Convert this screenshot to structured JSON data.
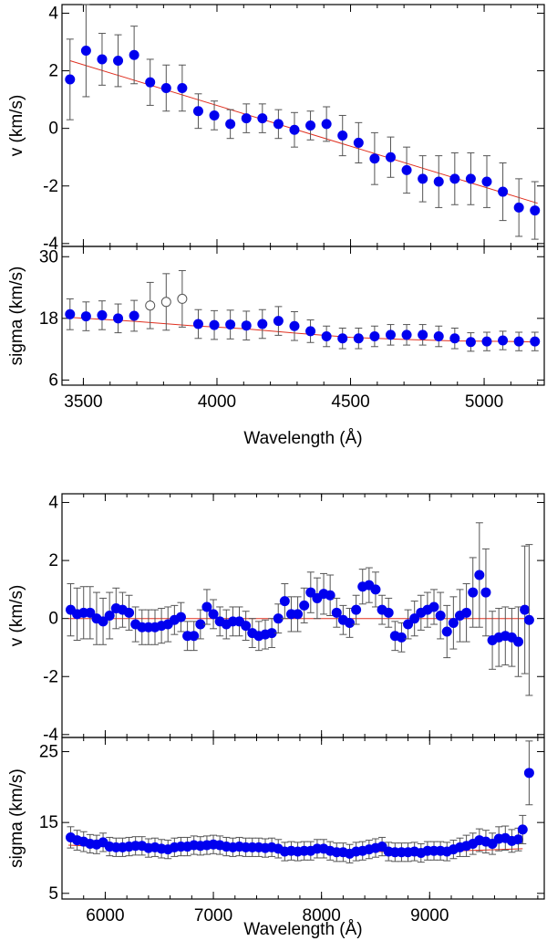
{
  "chart_data": [
    {
      "id": "blue-arm",
      "type": "scatter",
      "xlabel": "Wavelength (Å)",
      "xlim": [
        3420,
        5225
      ],
      "x_ticks": [
        "3500",
        "4000",
        "4500",
        "5000"
      ],
      "marker_color": "#0000ee",
      "fit_color": "#e03020",
      "errorbar_color": "#555555",
      "panels": [
        {
          "id": "v",
          "ylabel": "v (km/s)",
          "ylim": [
            -4.1,
            4.3
          ],
          "y_ticks": [
            "-4",
            "-2",
            "0",
            "2",
            "4"
          ],
          "fit_line": {
            "x": [
              3450,
              5200
            ],
            "y": [
              2.35,
              -2.6
            ]
          },
          "x": [
            3450,
            3510,
            3570,
            3630,
            3690,
            3750,
            3810,
            3870,
            3930,
            3990,
            4050,
            4110,
            4170,
            4230,
            4290,
            4350,
            4410,
            4470,
            4530,
            4590,
            4650,
            4710,
            4770,
            4830,
            4890,
            4950,
            5010,
            5070,
            5130,
            5190
          ],
          "y": [
            1.7,
            2.7,
            2.4,
            2.35,
            2.55,
            1.6,
            1.4,
            1.4,
            0.6,
            0.45,
            0.15,
            0.35,
            0.35,
            0.15,
            -0.05,
            0.1,
            0.15,
            -0.25,
            -0.5,
            -1.05,
            -1.0,
            -1.45,
            -1.75,
            -1.85,
            -1.75,
            -1.75,
            -1.85,
            -2.2,
            -2.75,
            -2.85
          ],
          "err": [
            1.4,
            1.6,
            0.9,
            0.9,
            1.0,
            0.8,
            0.8,
            0.8,
            0.6,
            0.5,
            0.5,
            0.5,
            0.5,
            0.5,
            0.6,
            0.5,
            0.6,
            0.7,
            0.7,
            0.9,
            0.7,
            0.8,
            0.8,
            0.9,
            0.9,
            0.9,
            0.9,
            1.0,
            1.0,
            1.0
          ],
          "open_x": [],
          "open_y": [],
          "open_err": []
        },
        {
          "id": "sigma",
          "ylabel": "sigma (km/s)",
          "ylim": [
            5,
            32
          ],
          "y_ticks": [
            "6",
            "18",
            "30"
          ],
          "fit_curve": {
            "x": [
              3450,
              3700,
              3900,
              4100,
              4300,
              4500,
              4700,
              4900,
              5100,
              5200
            ],
            "y": [
              18.2,
              17.4,
              16.6,
              16.0,
              15.1,
              14.3,
              13.9,
              13.6,
              13.5,
              13.4
            ]
          },
          "x": [
            3450,
            3510,
            3570,
            3630,
            3690,
            3930,
            3990,
            4050,
            4110,
            4170,
            4230,
            4290,
            4350,
            4410,
            4470,
            4530,
            4590,
            4650,
            4710,
            4770,
            4830,
            4890,
            4950,
            5010,
            5070,
            5130,
            5190
          ],
          "y": [
            18.8,
            18.4,
            18.6,
            18.0,
            18.5,
            16.9,
            16.7,
            16.8,
            16.6,
            16.9,
            17.5,
            16.5,
            15.5,
            14.5,
            14.1,
            14.1,
            14.5,
            14.8,
            14.8,
            14.8,
            14.5,
            14.1,
            13.4,
            13.5,
            13.7,
            13.5,
            13.5
          ],
          "err": [
            3.0,
            2.8,
            2.8,
            2.8,
            3.0,
            2.8,
            2.8,
            2.8,
            2.8,
            2.8,
            2.8,
            2.8,
            2.2,
            2.0,
            2.0,
            2.0,
            2.0,
            2.0,
            2.0,
            2.0,
            2.0,
            2.0,
            1.8,
            1.8,
            1.8,
            1.8,
            1.8
          ],
          "open_x": [
            3750,
            3810,
            3870
          ],
          "open_y": [
            20.5,
            21.2,
            21.8
          ],
          "open_err": [
            4.5,
            5.5,
            5.5
          ]
        }
      ]
    },
    {
      "id": "red-arm",
      "type": "scatter",
      "xlabel": "Wavelength (Å)",
      "xlim": [
        5600,
        10060
      ],
      "x_ticks": [
        "6000",
        "7000",
        "8000",
        "9000"
      ],
      "marker_color": "#0000ee",
      "fit_color": "#e03020",
      "errorbar_color": "#555555",
      "panels": [
        {
          "id": "v",
          "ylabel": "v (km/s)",
          "ylim": [
            -4.1,
            4.3
          ],
          "y_ticks": [
            "-4",
            "-2",
            "0",
            "2",
            "4"
          ],
          "fit_line": {
            "x": [
              5660,
              9940
            ],
            "y": [
              0.0,
              0.0
            ]
          },
          "x": [
            5680,
            5740,
            5800,
            5860,
            5920,
            5980,
            6040,
            6100,
            6160,
            6220,
            6280,
            6340,
            6400,
            6460,
            6520,
            6580,
            6640,
            6700,
            6760,
            6820,
            6880,
            6940,
            7000,
            7060,
            7120,
            7180,
            7240,
            7300,
            7360,
            7420,
            7480,
            7540,
            7600,
            7660,
            7720,
            7780,
            7840,
            7900,
            7960,
            8020,
            8080,
            8140,
            8200,
            8260,
            8320,
            8380,
            8440,
            8500,
            8560,
            8620,
            8680,
            8740,
            8800,
            8860,
            8920,
            8980,
            9040,
            9100,
            9160,
            9220,
            9280,
            9340,
            9400,
            9460,
            9520,
            9580,
            9640,
            9700,
            9760,
            9820,
            9880,
            9920
          ],
          "y": [
            0.3,
            0.15,
            0.2,
            0.2,
            0.0,
            -0.1,
            0.1,
            0.35,
            0.3,
            0.2,
            -0.2,
            -0.3,
            -0.3,
            -0.3,
            -0.25,
            -0.2,
            -0.05,
            0.05,
            -0.6,
            -0.6,
            -0.2,
            0.4,
            0.15,
            -0.1,
            -0.2,
            -0.1,
            -0.1,
            -0.25,
            -0.5,
            -0.6,
            -0.55,
            -0.5,
            0.0,
            0.6,
            0.15,
            0.15,
            0.45,
            0.9,
            0.7,
            0.85,
            0.8,
            0.2,
            -0.05,
            -0.15,
            0.3,
            1.1,
            1.15,
            1.0,
            0.3,
            0.2,
            -0.6,
            -0.65,
            -0.2,
            0.0,
            0.2,
            0.3,
            0.4,
            0.1,
            -0.45,
            -0.15,
            0.1,
            0.2,
            0.9,
            1.5,
            0.9,
            -0.75,
            -0.65,
            -0.6,
            -0.65,
            -0.8,
            0.3,
            -0.05
          ],
          "err": [
            0.9,
            0.9,
            0.9,
            0.9,
            0.9,
            0.8,
            0.8,
            0.7,
            0.6,
            0.6,
            0.6,
            0.6,
            0.6,
            0.6,
            0.6,
            0.6,
            0.5,
            0.5,
            0.5,
            0.5,
            0.5,
            0.6,
            0.5,
            0.5,
            0.5,
            0.5,
            0.5,
            0.5,
            0.5,
            0.5,
            0.5,
            0.5,
            0.5,
            0.6,
            0.6,
            0.6,
            0.6,
            0.7,
            0.7,
            0.7,
            0.7,
            0.5,
            0.5,
            0.5,
            0.5,
            0.6,
            0.6,
            0.6,
            0.5,
            0.5,
            0.5,
            0.5,
            0.5,
            0.6,
            0.6,
            0.6,
            0.6,
            0.8,
            0.9,
            0.9,
            0.9,
            1.0,
            1.2,
            1.8,
            1.5,
            1.0,
            1.0,
            1.0,
            1.0,
            1.2,
            2.2,
            2.6
          ],
          "open_x": [],
          "open_y": [],
          "open_err": []
        },
        {
          "id": "sigma",
          "ylabel": "sigma (km/s)",
          "ylim": [
            4.2,
            27
          ],
          "y_ticks": [
            "5",
            "15",
            "25"
          ],
          "fit_curve": {
            "x": [
              5660,
              6000,
              6500,
              7000,
              7500,
              8000,
              8500,
              9000,
              9500,
              9860
            ],
            "y": [
              11.8,
              11.6,
              11.5,
              11.4,
              11.3,
              11.1,
              10.9,
              10.9,
              11.1,
              11.3
            ]
          },
          "x": [
            5680,
            5740,
            5800,
            5860,
            5920,
            5980,
            6040,
            6100,
            6160,
            6220,
            6280,
            6340,
            6400,
            6460,
            6520,
            6580,
            6640,
            6700,
            6760,
            6820,
            6880,
            6940,
            7000,
            7060,
            7120,
            7180,
            7240,
            7300,
            7360,
            7420,
            7480,
            7540,
            7600,
            7660,
            7720,
            7780,
            7840,
            7900,
            7960,
            8020,
            8080,
            8140,
            8200,
            8260,
            8320,
            8380,
            8440,
            8500,
            8560,
            8620,
            8680,
            8740,
            8800,
            8860,
            8920,
            8980,
            9040,
            9100,
            9160,
            9220,
            9280,
            9340,
            9400,
            9460,
            9520,
            9580,
            9640,
            9700,
            9760,
            9820,
            9860,
            9920
          ],
          "y": [
            12.9,
            12.5,
            12.3,
            12.0,
            11.9,
            12.2,
            11.6,
            11.5,
            11.5,
            11.6,
            11.7,
            11.7,
            11.4,
            11.5,
            11.3,
            11.2,
            11.5,
            11.6,
            11.6,
            11.8,
            11.7,
            11.8,
            11.9,
            11.8,
            11.6,
            11.5,
            11.6,
            11.5,
            11.5,
            11.5,
            11.4,
            11.5,
            11.3,
            10.9,
            11.0,
            10.9,
            11.0,
            11.0,
            11.3,
            11.3,
            11.0,
            10.8,
            10.8,
            10.6,
            10.9,
            11.0,
            11.2,
            11.4,
            11.6,
            10.9,
            10.8,
            10.8,
            10.8,
            10.9,
            10.7,
            11.0,
            11.0,
            11.0,
            10.9,
            11.2,
            11.5,
            11.7,
            12.0,
            12.5,
            12.3,
            12.0,
            12.7,
            12.8,
            12.4,
            12.6,
            14.0,
            22.0
          ],
          "err": [
            1.5,
            1.4,
            1.4,
            1.3,
            1.3,
            1.3,
            1.3,
            1.3,
            1.3,
            1.3,
            1.3,
            1.3,
            1.3,
            1.3,
            1.3,
            1.3,
            1.3,
            1.3,
            1.3,
            1.3,
            1.3,
            1.3,
            1.3,
            1.3,
            1.3,
            1.3,
            1.3,
            1.3,
            1.3,
            1.3,
            1.3,
            1.3,
            1.3,
            1.3,
            1.3,
            1.3,
            1.3,
            1.3,
            1.3,
            1.3,
            1.3,
            1.3,
            1.3,
            1.3,
            1.3,
            1.3,
            1.3,
            1.3,
            1.3,
            1.3,
            1.3,
            1.3,
            1.3,
            1.3,
            1.3,
            1.3,
            1.3,
            1.3,
            1.3,
            1.3,
            1.3,
            1.5,
            1.5,
            1.6,
            1.6,
            1.5,
            1.7,
            1.7,
            1.6,
            1.6,
            2.0,
            4.5
          ],
          "open_x": [],
          "open_y": [],
          "open_err": []
        }
      ]
    }
  ]
}
